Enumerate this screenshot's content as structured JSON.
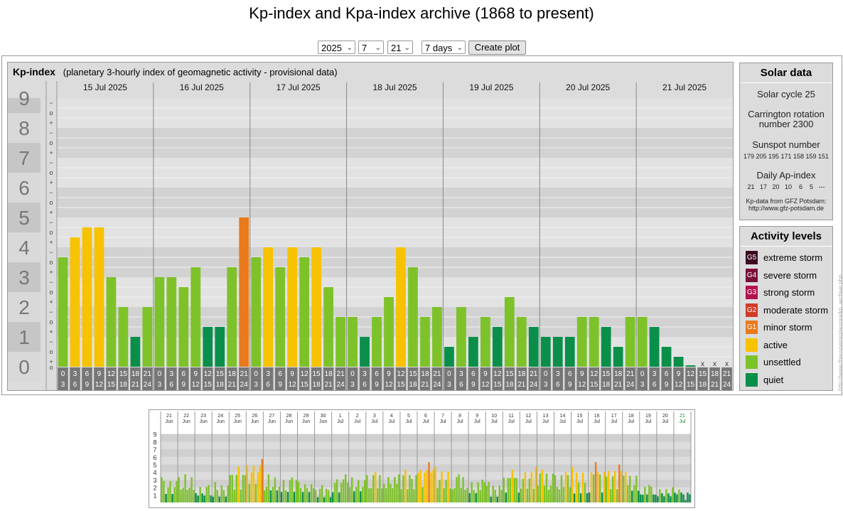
{
  "page": {
    "title": "Kp-index and Kpa-index archive (1868 to present)"
  },
  "controls": {
    "year": "2025",
    "month": "7",
    "day": "21",
    "period": "7 days",
    "button": "Create plot"
  },
  "chart_data": [
    {
      "type": "bar",
      "title": "Kp-index",
      "subtitle": "(planetary 3-hourly index of geomagnetic activity - provisional data)",
      "ylim": [
        0,
        9
      ],
      "y_ticks": [
        "0",
        "1",
        "2",
        "3",
        "4",
        "5",
        "6",
        "7",
        "8",
        "9"
      ],
      "minor_ticks": [
        "+",
        "o",
        "−"
      ],
      "days": [
        "15 Jul 2025",
        "16 Jul 2025",
        "17 Jul 2025",
        "18 Jul 2025",
        "19 Jul 2025",
        "20 Jul 2025",
        "21 Jul 2025"
      ],
      "hours_top": [
        "0",
        "3",
        "6",
        "9",
        "12",
        "15",
        "18",
        "21"
      ],
      "hours_bottom": [
        "3",
        "6",
        "9",
        "12",
        "15",
        "18",
        "21",
        "24"
      ],
      "missing_mark": "x",
      "values": [
        3.667,
        4.333,
        4.667,
        4.667,
        3.0,
        2.0,
        1.0,
        2.0,
        3.0,
        3.0,
        2.667,
        3.333,
        1.333,
        1.333,
        3.333,
        5.0,
        3.667,
        4.0,
        3.333,
        4.0,
        3.667,
        4.0,
        2.667,
        1.667,
        1.667,
        1.0,
        1.667,
        2.333,
        4.0,
        3.333,
        1.667,
        2.0,
        0.667,
        2.0,
        1.0,
        1.667,
        1.333,
        2.333,
        1.667,
        1.333,
        1.0,
        1.0,
        1.0,
        1.667,
        1.667,
        1.333,
        0.667,
        1.667,
        1.667,
        1.333,
        0.667,
        0.333,
        0.0,
        null,
        null,
        null
      ],
      "colors": {
        "quiet": "#0a8f4a",
        "unsettled": "#7ec22a",
        "active": "#f7c200",
        "minor": "#e97a1c",
        "moderate": "#d13a27"
      }
    },
    {
      "type": "bar",
      "title": "",
      "ylim": [
        0,
        9
      ],
      "y_ticks": [
        "1",
        "2",
        "3",
        "4",
        "5",
        "6",
        "7",
        "8",
        "9"
      ],
      "days": [
        [
          "21",
          "Jun"
        ],
        [
          "22",
          "Jun"
        ],
        [
          "23",
          "Jun"
        ],
        [
          "24",
          "Jun"
        ],
        [
          "25",
          "Jun"
        ],
        [
          "26",
          "Jun"
        ],
        [
          "27",
          "Jun"
        ],
        [
          "28",
          "Jun"
        ],
        [
          "29",
          "Jun"
        ],
        [
          "30",
          "Jun"
        ],
        [
          "1",
          "Jul"
        ],
        [
          "2",
          "Jul"
        ],
        [
          "3",
          "Jul"
        ],
        [
          "4",
          "Jul"
        ],
        [
          "5",
          "Jul"
        ],
        [
          "6",
          "Jul"
        ],
        [
          "7",
          "Jul"
        ],
        [
          "8",
          "Jul"
        ],
        [
          "9",
          "Jul"
        ],
        [
          "10",
          "Jul"
        ],
        [
          "11",
          "Jul"
        ],
        [
          "12",
          "Jul"
        ],
        [
          "13",
          "Jul"
        ],
        [
          "14",
          "Jul"
        ],
        [
          "15",
          "Jul"
        ],
        [
          "16",
          "Jul"
        ],
        [
          "17",
          "Jul"
        ],
        [
          "18",
          "Jul"
        ],
        [
          "19",
          "Jul"
        ],
        [
          "20",
          "Jul"
        ],
        [
          "21",
          "Jul"
        ]
      ],
      "daily_max": [
        3.3,
        3.7,
        2.3,
        2.7,
        4.7,
        5.7,
        3.7,
        3.3,
        2.7,
        2.3,
        3.7,
        3.3,
        4.0,
        3.7,
        4.3,
        5.3,
        4.7,
        3.7,
        3.0,
        2.7,
        4.3,
        4.7,
        4.3,
        4.0,
        4.7,
        5.3,
        5.0,
        4.0,
        2.3,
        2.0,
        1.7
      ],
      "daily_min": [
        1.0,
        1.3,
        0.7,
        0.7,
        1.7,
        2.3,
        1.3,
        1.0,
        1.3,
        0.7,
        1.3,
        1.3,
        1.3,
        1.7,
        1.7,
        2.0,
        1.7,
        1.3,
        1.0,
        0.7,
        1.3,
        1.7,
        1.3,
        1.3,
        1.0,
        1.3,
        1.7,
        1.3,
        0.7,
        0.7,
        0.3
      ]
    }
  ],
  "solar": {
    "title": "Solar data",
    "cycle": "Solar cycle 25",
    "carrington_1": "Carrington rotation",
    "carrington_2": "number 2300",
    "sunspot_label": "Sunspot number",
    "sunspot_values": "179 205 195 171 158 159 151",
    "ap_label": "Daily Ap-index",
    "ap_values": "21   17   20   10    6    5   ---",
    "credit_1": "Kp-data from  GFZ Potsdam:",
    "credit_2": "http://www.gfz-potsdam.de"
  },
  "activity": {
    "title": "Activity levels",
    "levels": [
      {
        "code": "G5",
        "label": "extreme storm",
        "color": "#3b0a20"
      },
      {
        "code": "G4",
        "label": "severe storm",
        "color": "#7a0f3c"
      },
      {
        "code": "G3",
        "label": "strong storm",
        "color": "#b2124f"
      },
      {
        "code": "G2",
        "label": "moderate storm",
        "color": "#d13a27"
      },
      {
        "code": "G1",
        "label": "minor storm",
        "color": "#e97a1c"
      },
      {
        "code": "",
        "label": "active",
        "color": "#f7c200"
      },
      {
        "code": "",
        "label": "unsettled",
        "color": "#7ec22a"
      },
      {
        "code": "",
        "label": "quiet",
        "color": "#0a8f4a"
      }
    ]
  },
  "credit_vertical": "http://www.theusnerorg/aurora/kp_archive.php"
}
